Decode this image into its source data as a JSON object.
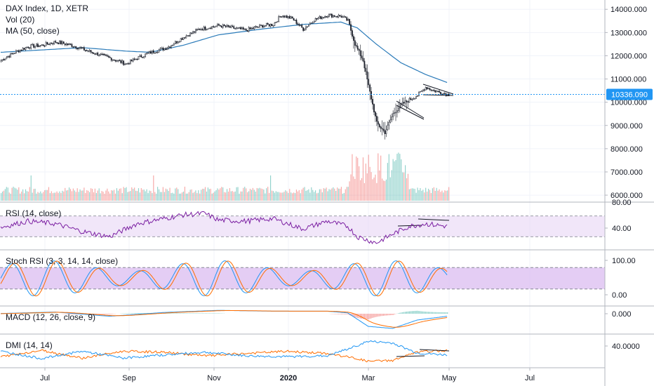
{
  "legend": {
    "title": "DAX Index, 1D, XETR",
    "volume": "Vol (20)",
    "ma": "MA (50, close)"
  },
  "current_price_label": "10336.090",
  "panes": {
    "rsi": {
      "title": "RSI (14, close)",
      "ticks": [
        "80.00",
        "40.00"
      ]
    },
    "stoch": {
      "title": "Stoch RSI (3, 3, 14, 14, close)",
      "ticks": [
        "100.00",
        "0.00"
      ]
    },
    "macd": {
      "title": "MACD (12, 26, close, 9)",
      "ticks": [
        "0.000"
      ]
    },
    "dmi": {
      "title": "DMI (14, 14)",
      "ticks": [
        "40.0000"
      ]
    }
  },
  "colors": {
    "up": "#26a69a",
    "down": "#ef5350",
    "ma": "#2b7bb9",
    "rsi": "#7b1fa2",
    "band": "#e7d6f5",
    "stoch_k": "#2196f3",
    "stoch_d": "#ff6d00",
    "price_line": "#2196f3",
    "price_label_bg": "#2196f3"
  },
  "chart_data": {
    "type": "candlestick",
    "price_axis": {
      "ticks": [
        "14000.000",
        "13000.000",
        "12000.000",
        "11000.000",
        "10000.000",
        "9000.000",
        "8000.000",
        "7000.000",
        "6000.000"
      ],
      "range": [
        5700,
        14400
      ]
    },
    "x_ticks": [
      {
        "label": "Jul",
        "bold": false
      },
      {
        "label": "Sep",
        "bold": false
      },
      {
        "label": "Nov",
        "bold": false
      },
      {
        "label": "2020",
        "bold": true
      },
      {
        "label": "Mar",
        "bold": false
      },
      {
        "label": "May",
        "bold": false
      },
      {
        "label": "Jul",
        "bold": false
      }
    ],
    "current_price": 10336.09,
    "close_path": [
      [
        0,
        11800
      ],
      [
        10,
        12150
      ],
      [
        20,
        12400
      ],
      [
        30,
        12450
      ],
      [
        40,
        12600
      ],
      [
        52,
        12450
      ],
      [
        64,
        12200
      ],
      [
        80,
        11900
      ],
      [
        92,
        11650
      ],
      [
        100,
        11900
      ],
      [
        110,
        12150
      ],
      [
        122,
        12350
      ],
      [
        134,
        12800
      ],
      [
        146,
        13150
      ],
      [
        160,
        13300
      ],
      [
        170,
        13200
      ],
      [
        180,
        13100
      ],
      [
        192,
        13300
      ],
      [
        200,
        13350
      ],
      [
        206,
        13750
      ],
      [
        214,
        13600
      ],
      [
        222,
        13150
      ],
      [
        230,
        13550
      ],
      [
        240,
        13750
      ],
      [
        250,
        13700
      ],
      [
        255,
        13500
      ],
      [
        260,
        12500
      ],
      [
        266,
        11800
      ],
      [
        270,
        10700
      ],
      [
        276,
        9100
      ],
      [
        282,
        8700
      ],
      [
        288,
        9500
      ],
      [
        294,
        9900
      ],
      [
        300,
        10100
      ],
      [
        306,
        10300
      ],
      [
        312,
        10650
      ],
      [
        318,
        10500
      ],
      [
        324,
        10400
      ],
      [
        328,
        10336
      ]
    ],
    "ma_path": [
      [
        0,
        12150
      ],
      [
        30,
        12250
      ],
      [
        60,
        12350
      ],
      [
        92,
        12200
      ],
      [
        110,
        12150
      ],
      [
        134,
        12450
      ],
      [
        160,
        12900
      ],
      [
        192,
        13150
      ],
      [
        222,
        13350
      ],
      [
        250,
        13450
      ],
      [
        262,
        13200
      ],
      [
        276,
        12500
      ],
      [
        294,
        11700
      ],
      [
        312,
        11200
      ],
      [
        328,
        10850
      ]
    ],
    "rsi_path": [
      [
        0,
        48
      ],
      [
        20,
        60
      ],
      [
        40,
        55
      ],
      [
        60,
        40
      ],
      [
        80,
        30
      ],
      [
        100,
        55
      ],
      [
        120,
        65
      ],
      [
        134,
        72
      ],
      [
        150,
        75
      ],
      [
        160,
        62
      ],
      [
        180,
        60
      ],
      [
        200,
        65
      ],
      [
        222,
        45
      ],
      [
        240,
        60
      ],
      [
        255,
        50
      ],
      [
        262,
        30
      ],
      [
        276,
        18
      ],
      [
        288,
        35
      ],
      [
        300,
        50
      ],
      [
        312,
        55
      ],
      [
        328,
        50
      ]
    ],
    "stoch_points": 110,
    "macd_path": [
      [
        0,
        5
      ],
      [
        40,
        40
      ],
      [
        80,
        -60
      ],
      [
        120,
        30
      ],
      [
        160,
        80
      ],
      [
        200,
        60
      ],
      [
        240,
        60
      ],
      [
        255,
        20
      ],
      [
        270,
        -300
      ],
      [
        288,
        -350
      ],
      [
        306,
        -150
      ],
      [
        328,
        -60
      ]
    ],
    "dmi_plus_path": [
      [
        0,
        18
      ],
      [
        30,
        32
      ],
      [
        60,
        15
      ],
      [
        90,
        30
      ],
      [
        120,
        28
      ],
      [
        150,
        20
      ],
      [
        180,
        25
      ],
      [
        210,
        30
      ],
      [
        240,
        25
      ],
      [
        260,
        15
      ],
      [
        270,
        8
      ],
      [
        288,
        10
      ],
      [
        306,
        28
      ],
      [
        328,
        32
      ]
    ],
    "dmi_minus_path": [
      [
        0,
        30
      ],
      [
        30,
        14
      ],
      [
        60,
        30
      ],
      [
        90,
        15
      ],
      [
        120,
        22
      ],
      [
        150,
        28
      ],
      [
        180,
        20
      ],
      [
        210,
        18
      ],
      [
        240,
        20
      ],
      [
        260,
        40
      ],
      [
        270,
        52
      ],
      [
        288,
        48
      ],
      [
        306,
        26
      ],
      [
        328,
        22
      ]
    ]
  }
}
